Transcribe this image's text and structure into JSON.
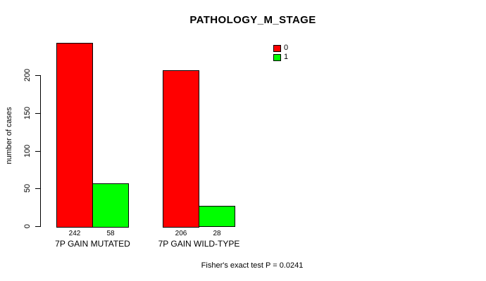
{
  "chart_data": {
    "type": "bar",
    "title": "PATHOLOGY_M_STAGE",
    "ylabel": "number of cases",
    "xlabel": "",
    "categories": [
      "7P GAIN MUTATED",
      "7P GAIN WILD-TYPE"
    ],
    "series": [
      {
        "name": "0",
        "color": "#FF0000",
        "values": [
          242,
          206
        ]
      },
      {
        "name": "1",
        "color": "#00FF00",
        "values": [
          58,
          28
        ]
      }
    ],
    "y_ticks": [
      0,
      50,
      100,
      150,
      200
    ],
    "ylim": [
      0,
      242
    ],
    "grid": false,
    "legend_position": "top-right",
    "bar_border_color": "#000000",
    "footnote": "Fisher's exact test P = 0.0241"
  }
}
